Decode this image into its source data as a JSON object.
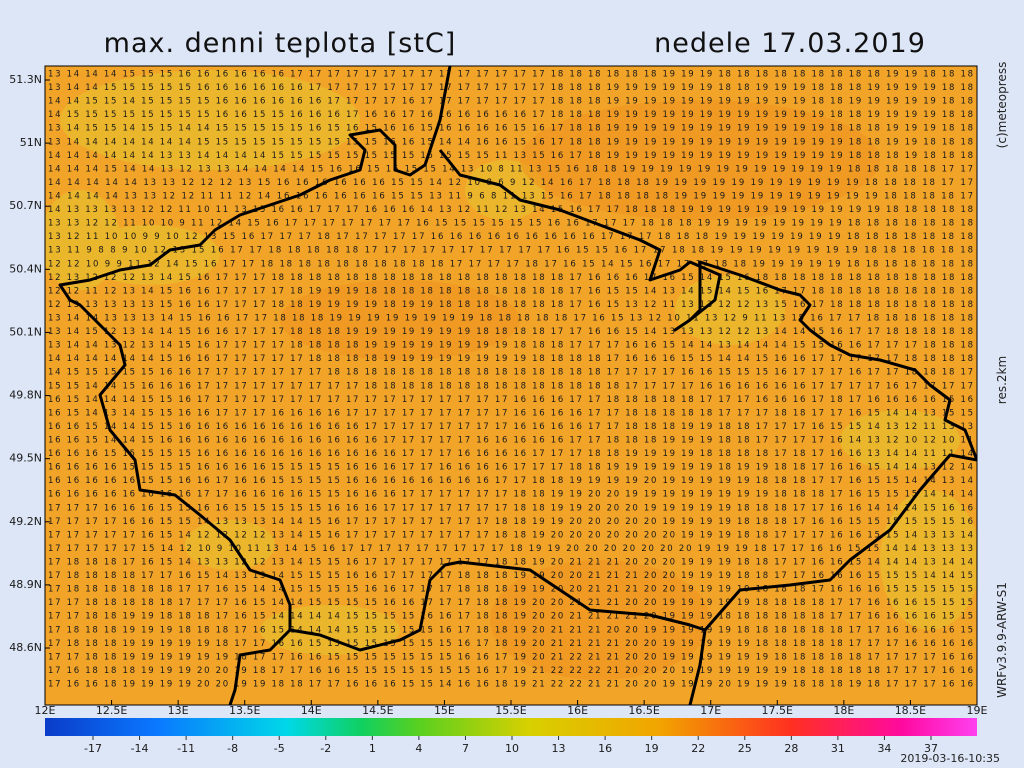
{
  "map": {
    "title": "max. denni teplota [stC]",
    "date": "nedele 17.03.2019",
    "credit": "(c)meteopress",
    "resolution": "res.2km",
    "model": "WRFv3.9.9-ARW-S1",
    "run": "2019-03-16-10:35",
    "lat_ticks": [
      {
        "value": 51.3,
        "label": "51.3N"
      },
      {
        "value": 51,
        "label": "51N"
      },
      {
        "value": 50.7,
        "label": "50.7N"
      },
      {
        "value": 50.4,
        "label": "50.4N"
      },
      {
        "value": 50.1,
        "label": "50.1N"
      },
      {
        "value": 49.8,
        "label": "49.8N"
      },
      {
        "value": 49.5,
        "label": "49.5N"
      },
      {
        "value": 49.2,
        "label": "49.2N"
      },
      {
        "value": 48.9,
        "label": "48.9N"
      },
      {
        "value": 48.6,
        "label": "48.6N"
      }
    ],
    "lon_ticks": [
      {
        "value": 12,
        "label": "12E"
      },
      {
        "value": 12.5,
        "label": "12.5E"
      },
      {
        "value": 13,
        "label": "13E"
      },
      {
        "value": 13.5,
        "label": "13.5E"
      },
      {
        "value": 14,
        "label": "14E"
      },
      {
        "value": 14.5,
        "label": "14.5E"
      },
      {
        "value": 15,
        "label": "15E"
      },
      {
        "value": 15.5,
        "label": "15.5E"
      },
      {
        "value": 16,
        "label": "16E"
      },
      {
        "value": 16.5,
        "label": "16.5E"
      },
      {
        "value": 17,
        "label": "17E"
      },
      {
        "value": 17.5,
        "label": "17.5E"
      },
      {
        "value": 18,
        "label": "18E"
      },
      {
        "value": 18.5,
        "label": "18.5E"
      },
      {
        "value": 19,
        "label": "19E"
      }
    ],
    "colorbar_ticks": [
      -17,
      -14,
      -11,
      -8,
      -5,
      -2,
      1,
      4,
      7,
      10,
      13,
      16,
      19,
      22,
      25,
      28,
      31,
      34,
      37
    ],
    "grid_rows": [
      "13 14 14 14 15 15 15 16 16 16 16 16 16 17 17 17 17 17 17 17 17 17 17 17 17 17 17 18 18 18 18 18 18 19 19 19 18 18 18 18 18 18 18 18 18 19 19 18 18 18",
      "13 14 14 15 15 15 15 15 16 16 16 16 16 16 17 17 17 17 17 17 17 17 17 17 17 17 17 18 18 18 19 19 19 19 19 19 18 18 19 19 19 18 18 18 19 19 19 19 18 18",
      "14 14 15 15 14 15 15 15 15 16 16 16 16 16 16 17 17 17 17 16 17 17 17 17 17 17 17 18 18 18 19 19 19 19 19 19 19 19 19 19 19 18 18 19 19 19 19 19 18 18",
      "14 15 15 15 15 15 15 15 15 16 16 15 15 16 16 16 17 16 16 17 16 16 16 16 16 16 17 18 18 18 19 19 19 19 19 19 19 19 19 19 19 19 18 18 19 19 19 19 18 18",
      "13 14 15 15 14 15 15 14 14 15 15 15 15 15 16 15 16 15 16 16 15 16 16 16 16 15 16 17 18 18 19 19 19 19 19 19 19 19 19 19 19 19 18 18 18 19 19 19 18 18",
      "13 14 14 14 14 14 14 14 15 15 15 15 15 15 15 15 15 15 16 16 15 14 14 16 16 15 16 17 18 18 19 19 19 19 19 19 19 19 19 19 19 19 19 18 18 19 19 18 18 18",
      "14 14 14 14 14 14 13 13 14 14 14 14 15 15 15 15 15 15 15 15 15 15 15 15 11 13 15 16 17 18 19 19 19 19 19 19 19 19 19 19 19 19 19 18 18 18 19 18 18 18",
      "14 14 14 15 14 14 13 12 13 13 14 14 14 14 15 16 16 15 15 15 15 14 13 10 8 11 13 15 16 18 18 19 19 19 19 19 19 19 19 19 19 19 19 18 18 18 18 18 17 17",
      "14 14 14 14 14 13 13 12 12 12 13 15 16 16 16 16 16 16 15 15 14 12 10 8 6 9 12 14 16 17 18 18 18 19 19 19 19 19 19 19 19 19 19 19 18 18 18 18 17 17",
      "14 14 14 14 13 13 12 12 11 11 12 14 16 16 16 16 16 16 15 15 13 11 9 6 8 11 13 15 16 17 18 18 18 18 19 19 19 19 19 19 19 19 19 19 19 18 18 18 18 17",
      "14 13 13 13 13 12 12 11 10 11 13 15 16 16 17 17 17 16 16 16 14 13 12 11 12 13 14 15 16 17 17 18 18 18 19 19 19 19 19 19 19 19 19 19 19 18 18 18 18 18",
      "13 13 12 12 11 10 10 9 11 12 14 15 16 17 17 17 17 17 17 17 16 15 15 15 15 15 15 16 16 17 17 17 18 18 18 19 19 19 19 19 19 19 19 18 18 18 18 18 18 18",
      "13 12 11 10 10 9 9 10 12 13 15 16 17 17 17 18 17 17 17 17 17 16 16 16 16 16 16 16 16 16 17 17 17 18 18 18 19 19 19 19 19 19 19 18 18 18 18 18 18 18",
      "13 11 9 8 8 9 10 12 13 15 16 17 17 18 18 18 18 18 17 17 17 17 17 17 17 17 17 17 16 15 15 16 17 17 18 18 19 19 19 19 19 19 19 19 18 18 18 18 18 18",
      "12 12 10 9 9 11 12 14 15 16 17 17 18 18 18 18 18 18 18 18 18 18 17 17 17 17 18 17 16 15 14 15 16 17 17 17 18 18 19 19 19 19 19 18 18 18 18 18 18 18",
      "12 13 12 12 12 13 14 15 16 17 17 17 18 18 18 18 18 18 18 18 18 18 18 18 18 18 18 18 17 16 16 16 17 16 15 14 15 16 18 18 18 18 18 18 18 18 18 18 18 18",
      "12 12 11 12 13 14 15 16 16 17 17 17 17 18 19 19 19 18 18 18 18 18 18 18 18 18 18 18 17 16 15 15 14 13 14 15 14 15 16 17 17 18 18 18 18 18 18 18 18 18",
      "12 13 13 13 13 13 15 16 16 17 17 17 18 18 19 19 19 19 18 19 19 18 18 18 18 18 18 18 17 16 15 13 12 11 13 13 12 12 13 15 16 17 18 18 18 18 18 18 18 18",
      "13 14 14 13 13 13 14 15 16 16 17 17 18 18 18 19 19 19 19 19 19 19 19 18 18 18 18 18 17 16 15 13 12 10 11 13 12 9 11 13 15 16 17 17 18 18 18 18 18 18",
      "13 14 15 12 13 14 14 15 16 16 17 17 17 18 18 18 19 19 19 19 19 19 19 18 18 18 18 17 17 16 16 15 14 13 13 13 12 12 13 14 14 15 16 17 17 18 18 18 18 18",
      "13 14 14 13 12 13 14 15 16 17 17 17 17 18 18 18 18 19 19 19 19 19 19 19 19 18 18 18 17 17 17 16 16 15 14 14 13 14 14 14 15 15 16 16 17 17 17 18 18 18",
      "14 14 14 14 14 14 15 16 16 17 17 17 17 17 18 18 18 18 19 19 19 19 19 19 19 19 18 18 18 18 17 16 16 16 15 15 14 14 15 16 16 17 17 17 17 17 18 18 18 18",
      "14 15 15 15 15 15 16 16 17 17 17 17 17 17 17 18 18 18 18 18 18 18 18 18 18 18 18 18 18 18 17 17 17 17 16 16 15 15 15 16 17 17 17 16 17 17 18 18 18 17",
      "15 15 14 14 15 16 16 16 17 17 17 17 17 17 17 17 17 18 18 18 18 18 18 18 18 18 18 18 18 18 18 17 17 17 17 16 16 16 16 16 16 17 17 17 17 16 17 17 17 17",
      "16 15 14 14 14 15 15 16 17 17 17 17 17 17 17 17 17 17 17 17 17 17 17 17 17 16 16 16 17 17 18 18 18 18 18 17 17 17 16 16 16 17 18 17 16 16 16 16 15 16",
      "16 15 14 13 14 15 15 16 16 17 17 17 16 16 16 16 17 17 17 17 17 17 17 17 17 16 16 16 16 17 17 18 18 18 18 18 17 17 17 18 18 17 17 16 15 14 14 13 15 15",
      "16 16 15 14 14 15 15 16 16 16 16 16 16 16 16 16 16 17 17 17 17 17 17 17 17 16 16 16 16 17 17 18 18 18 19 19 18 18 17 17 17 16 15 15 14 13 12 11 13 13",
      "16 16 15 14 14 15 16 16 16 16 16 16 16 16 16 16 16 16 17 17 17 17 17 16 16 16 16 16 17 17 18 18 18 19 19 19 18 18 17 17 17 17 16 14 13 12 10 12 10 11",
      "16 16 16 15 15 15 15 15 16 16 16 16 16 16 16 16 16 16 16 17 17 17 16 16 16 16 17 17 17 18 18 19 19 19 19 18 18 18 18 17 18 17 16 16 13 14 14 11 11 14",
      "16 16 16 16 15 15 15 15 16 16 16 16 15 15 15 15 16 16 16 17 17 16 16 16 16 17 17 17 18 18 19 19 19 19 19 19 18 19 19 18 18 17 16 16 15 14 14 13 12 14",
      "16 16 16 16 16 15 15 16 16 17 16 16 15 15 15 15 16 16 16 16 16 16 16 16 17 17 18 18 19 19 19 19 20 19 19 19 19 19 18 18 18 17 17 16 15 15 14 14 13 14",
      "16 16 16 16 16 16 16 16 17 17 16 16 16 16 15 15 16 16 16 17 17 17 17 17 17 18 18 19 19 20 20 19 19 19 19 19 19 19 19 18 18 18 17 16 15 15 15 14 14 14",
      "17 17 17 16 16 16 15 15 16 16 15 15 15 15 15 16 16 16 17 17 17 17 17 17 17 18 18 19 19 20 20 20 19 19 19 19 19 18 18 18 17 17 16 16 14 14 14 15 16 16",
      "17 17 17 17 16 16 15 15 14 13 13 13 14 14 15 16 17 17 17 17 17 17 17 17 18 18 19 19 20 20 20 20 20 19 19 19 19 18 18 18 17 16 16 15 15 15 15 15 15 16",
      "17 17 17 17 17 16 15 14 12 12 12 12 13 14 15 16 17 17 17 17 17 17 17 17 18 18 19 20 20 20 20 20 20 20 19 19 19 18 18 17 17 17 16 16 15 15 14 13 13 14",
      "17 17 17 17 17 15 14 12 10 9 10 11 13 14 15 16 17 17 17 17 17 17 17 17 17 18 19 19 20 20 20 20 20 20 20 19 19 19 18 17 17 16 16 15 15 14 14 13 13 13",
      "17 18 18 18 17 16 15 14 13 13 12 12 13 14 15 15 16 17 17 17 17 17 17 17 18 18 19 20 21 21 21 20 20 20 19 19 19 18 18 17 17 16 16 15 14 14 14 13 14 14",
      "17 18 18 18 18 17 17 16 15 14 13 13 14 15 15 15 16 16 17 17 17 17 18 18 18 19 19 20 20 21 21 21 20 20 19 19 19 18 18 17 17 16 16 16 15 15 15 14 14 15",
      "17 18 18 18 18 18 18 17 17 16 15 14 14 15 15 15 15 16 16 17 17 17 18 18 18 19 19 20 20 21 21 21 20 20 19 19 19 19 18 18 18 17 16 16 16 15 15 15 15 15",
      "17 17 18 18 18 18 18 17 17 17 16 15 14 14 15 15 15 15 16 16 17 17 17 18 18 19 20 20 21 21 21 20 20 19 19 19 19 19 18 18 18 18 17 17 16 16 16 15 15 15",
      "17 17 18 18 19 19 18 18 18 17 16 15 14 14 14 14 15 15 15 15 16 16 17 18 18 19 20 20 21 21 21 21 20 19 19 19 18 18 18 18 18 18 17 17 16 16 16 16 15 15",
      "17 18 18 18 19 19 19 18 18 18 17 16 15 14 14 14 15 15 15 15 15 16 17 18 18 19 20 21 21 21 20 20 19 19 19 19 19 18 18 18 18 18 18 17 17 16 16 16 16 15",
      "17 18 18 18 19 19 19 19 19 18 17 17 16 16 15 15 15 15 15 15 15 15 16 17 18 19 20 21 21 21 21 20 20 19 19 19 19 19 18 18 18 18 18 17 17 17 16 16 16 16",
      "17 17 18 18 19 19 19 19 19 19 18 17 17 16 16 15 15 15 15 15 15 15 16 16 17 19 20 21 22 21 21 20 20 19 19 19 19 19 19 18 18 18 18 18 17 17 17 17 16 16",
      "17 16 18 18 18 19 19 19 20 20 19 18 17 17 16 16 15 15 15 15 15 15 15 16 17 19 21 22 22 22 21 20 20 20 19 19 19 19 19 19 18 18 18 18 18 17 17 17 16 16",
      "17 16 16 18 19 19 19 19 20 20 19 19 18 18 17 17 16 16 16 15 15 14 16 16 18 19 21 22 22 21 21 20 20 19 19 19 20 19 19 19 18 18 18 19 18 17 17 17 16 16"
    ]
  }
}
